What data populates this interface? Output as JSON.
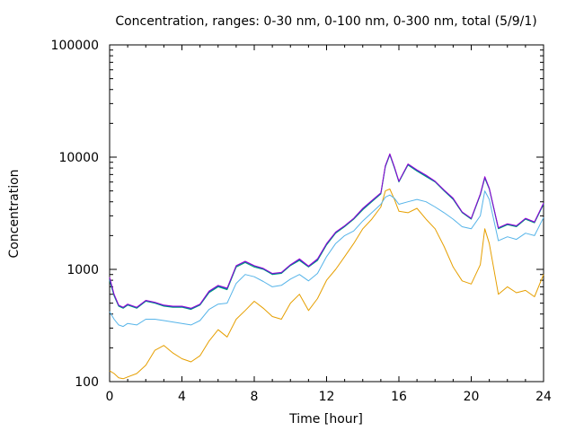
{
  "chart_data": {
    "type": "line",
    "title": "Concentration, ranges: 0-30 nm, 0-100 nm, 0-300 nm, total (5/9/1)",
    "xlabel": "Time [hour]",
    "ylabel": "Concentration",
    "xlim": [
      0,
      24
    ],
    "ylim": [
      100,
      100000
    ],
    "yscale": "log",
    "grid": false,
    "legend": "none",
    "x_ticks": [
      "0",
      "4",
      "8",
      "12",
      "16",
      "20",
      "24"
    ],
    "x_tick_values": [
      0,
      4,
      8,
      12,
      16,
      20,
      24
    ],
    "y_ticks": [
      "100",
      "1000",
      "10000",
      "100000"
    ],
    "y_tick_values": [
      100,
      1000,
      10000,
      100000
    ],
    "x": [
      0,
      0.25,
      0.5,
      0.75,
      1,
      1.5,
      2,
      2.5,
      3,
      3.5,
      4,
      4.5,
      5,
      5.5,
      6,
      6.5,
      7,
      7.5,
      8,
      8.5,
      9,
      9.5,
      10,
      10.5,
      11,
      11.5,
      12,
      12.5,
      13,
      13.5,
      14,
      14.5,
      15,
      15.25,
      15.5,
      15.75,
      16,
      16.5,
      17,
      17.5,
      18,
      18.5,
      19,
      19.5,
      20,
      20.5,
      20.75,
      21,
      21.5,
      22,
      22.5,
      23,
      23.5,
      24
    ],
    "series": [
      {
        "color": "#e69f00",
        "values": [
          125,
          118,
          108,
          106,
          110,
          118,
          140,
          190,
          210,
          180,
          160,
          150,
          170,
          230,
          290,
          250,
          360,
          430,
          520,
          450,
          380,
          360,
          500,
          600,
          430,
          550,
          800,
          1000,
          1300,
          1700,
          2300,
          2800,
          3600,
          5000,
          5200,
          4200,
          3300,
          3200,
          3500,
          2800,
          2300,
          1600,
          1050,
          790,
          740,
          1100,
          2300,
          1700,
          600,
          700,
          620,
          650,
          570,
          900
        ]
      },
      {
        "color": "#56b4e9",
        "values": [
          420,
          360,
          320,
          310,
          330,
          320,
          360,
          360,
          350,
          340,
          330,
          320,
          350,
          440,
          490,
          500,
          750,
          900,
          860,
          780,
          700,
          720,
          820,
          900,
          790,
          920,
          1300,
          1700,
          2000,
          2200,
          2700,
          3200,
          3800,
          4400,
          4600,
          4300,
          3800,
          4000,
          4200,
          4000,
          3600,
          3200,
          2800,
          2400,
          2300,
          3000,
          5000,
          4200,
          1800,
          1950,
          1850,
          2100,
          2000,
          2900
        ]
      },
      {
        "color": "#009e73",
        "values": [
          800,
          580,
          470,
          450,
          480,
          450,
          520,
          500,
          470,
          460,
          460,
          440,
          480,
          620,
          700,
          660,
          1050,
          1150,
          1050,
          1000,
          900,
          920,
          1080,
          1200,
          1050,
          1200,
          1650,
          2100,
          2400,
          2800,
          3400,
          4000,
          4700,
          8200,
          10500,
          8000,
          6000,
          8500,
          7500,
          6700,
          6000,
          5000,
          4200,
          3200,
          2800,
          4600,
          6500,
          5200,
          2300,
          2500,
          2400,
          2800,
          2600,
          3800
        ]
      },
      {
        "color": "#0072b2",
        "values": [
          820,
          590,
          475,
          455,
          485,
          455,
          525,
          505,
          475,
          465,
          465,
          445,
          485,
          630,
          710,
          670,
          1070,
          1170,
          1070,
          1010,
          910,
          930,
          1090,
          1220,
          1060,
          1220,
          1680,
          2130,
          2430,
          2830,
          3450,
          4050,
          4750,
          8300,
          10600,
          8100,
          6050,
          8600,
          7600,
          6800,
          6050,
          5050,
          4250,
          3230,
          2830,
          4650,
          6600,
          5250,
          2330,
          2530,
          2430,
          2830,
          2630,
          3850
        ]
      },
      {
        "color": "#9400d3",
        "values": [
          850,
          600,
          480,
          460,
          490,
          460,
          530,
          510,
          480,
          470,
          470,
          450,
          490,
          640,
          720,
          680,
          1080,
          1180,
          1080,
          1020,
          920,
          940,
          1100,
          1240,
          1070,
          1240,
          1700,
          2150,
          2450,
          2850,
          3500,
          4100,
          4800,
          8400,
          10700,
          8200,
          6100,
          8700,
          7700,
          6900,
          6100,
          5100,
          4300,
          3250,
          2850,
          4700,
          6700,
          5300,
          2350,
          2550,
          2450,
          2850,
          2650,
          3900
        ]
      }
    ]
  }
}
